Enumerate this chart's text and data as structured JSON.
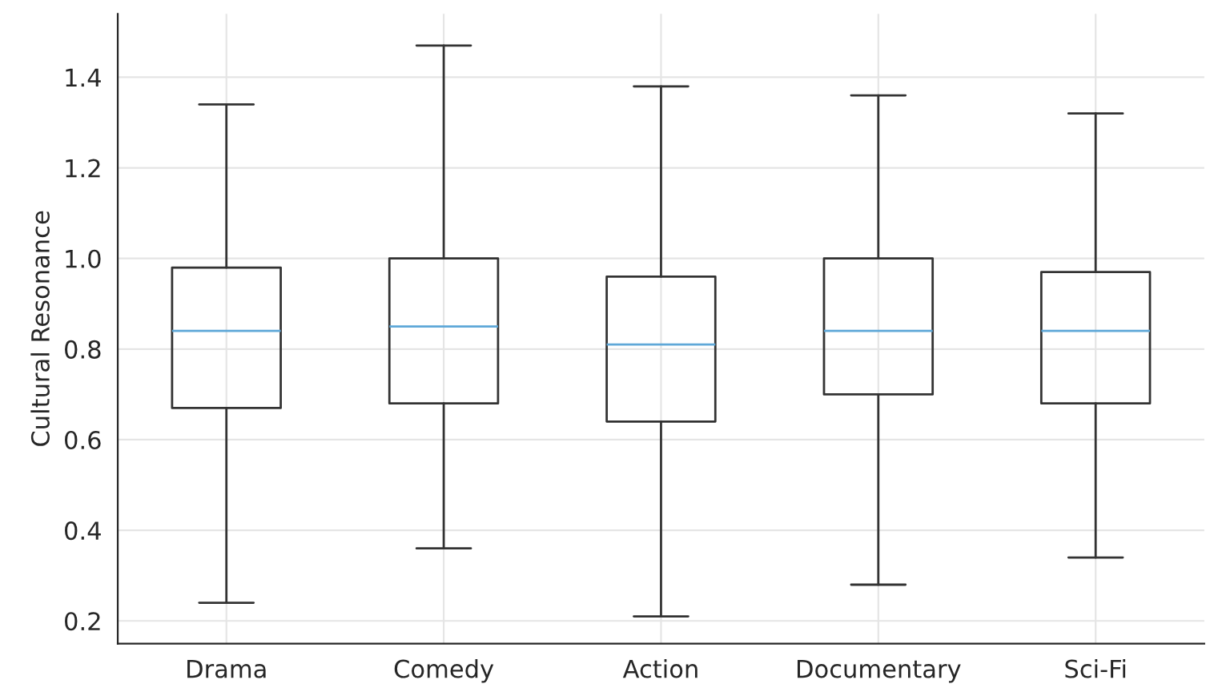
{
  "chart_data": {
    "type": "box",
    "ylabel": "Cultural Resonance",
    "categories": [
      "Drama",
      "Comedy",
      "Action",
      "Documentary",
      "Sci-Fi"
    ],
    "boxes": [
      {
        "low": 0.24,
        "q1": 0.67,
        "median": 0.84,
        "q3": 0.98,
        "high": 1.34
      },
      {
        "low": 0.36,
        "q1": 0.68,
        "median": 0.85,
        "q3": 1.0,
        "high": 1.47
      },
      {
        "low": 0.21,
        "q1": 0.64,
        "median": 0.81,
        "q3": 0.96,
        "high": 1.38
      },
      {
        "low": 0.28,
        "q1": 0.7,
        "median": 0.84,
        "q3": 1.0,
        "high": 1.36
      },
      {
        "low": 0.34,
        "q1": 0.68,
        "median": 0.84,
        "q3": 0.97,
        "high": 1.32
      }
    ],
    "color": "#333333",
    "ylim": [
      0.15,
      1.54
    ],
    "yticks": [
      0.2,
      0.4,
      0.6,
      0.8,
      {
        "value": 1.0,
        "label": "1.0"
      },
      1.2,
      1.4
    ],
    "grid": true
  }
}
